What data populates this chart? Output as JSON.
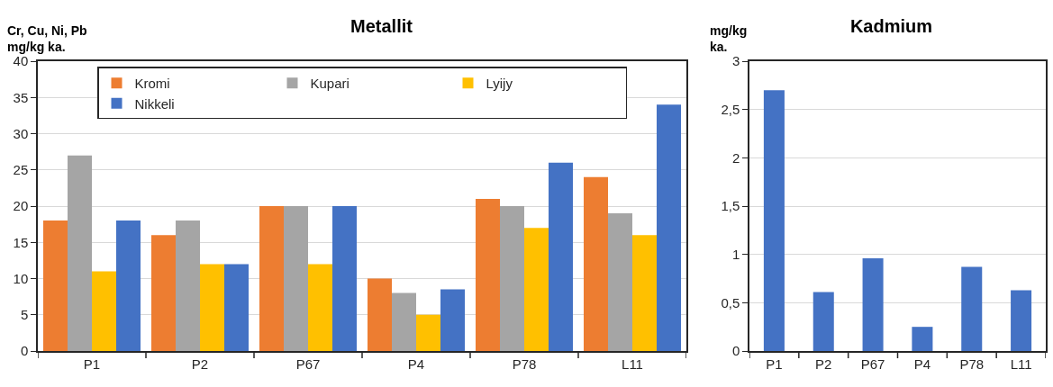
{
  "chart_data": [
    {
      "type": "bar",
      "title": "Metallit",
      "ylabel": "Cr, Cu, Ni, Pb\nmg/kg ka.",
      "categories": [
        "P1",
        "P2",
        "P67",
        "P4",
        "P78",
        "L11"
      ],
      "series": [
        {
          "name": "Kromi",
          "color": "#ed7d31",
          "values": [
            18,
            16,
            20,
            10,
            21,
            24
          ]
        },
        {
          "name": "Kupari",
          "color": "#a5a5a5",
          "values": [
            27,
            18,
            20,
            8,
            20,
            19
          ]
        },
        {
          "name": "Lyijy",
          "color": "#ffc000",
          "values": [
            11,
            12,
            12,
            5,
            17,
            16
          ]
        },
        {
          "name": "Nikkeli",
          "color": "#4472c4",
          "values": [
            18,
            12,
            20,
            8.5,
            26,
            34
          ]
        }
      ],
      "ylim": [
        0,
        40
      ],
      "yticks": [
        0,
        5,
        10,
        15,
        20,
        25,
        30,
        35,
        40
      ],
      "grid": "y",
      "legend": "top"
    },
    {
      "type": "bar",
      "title": "Kadmium",
      "ylabel": "mg/kg\nka.",
      "categories": [
        "P1",
        "P2",
        "P67",
        "P4",
        "P78",
        "L11"
      ],
      "series": [
        {
          "color": "#4472c4",
          "values": [
            2.7,
            0.61,
            0.96,
            0.25,
            0.87,
            0.63
          ]
        }
      ],
      "ylim": [
        0,
        3
      ],
      "yticks": [
        0,
        {
          "value": 0.5,
          "label": "0,5"
        },
        1,
        {
          "value": 1.5,
          "label": "1,5"
        },
        2,
        {
          "value": 2.5,
          "label": "2,5"
        },
        3
      ],
      "grid": "y"
    }
  ]
}
